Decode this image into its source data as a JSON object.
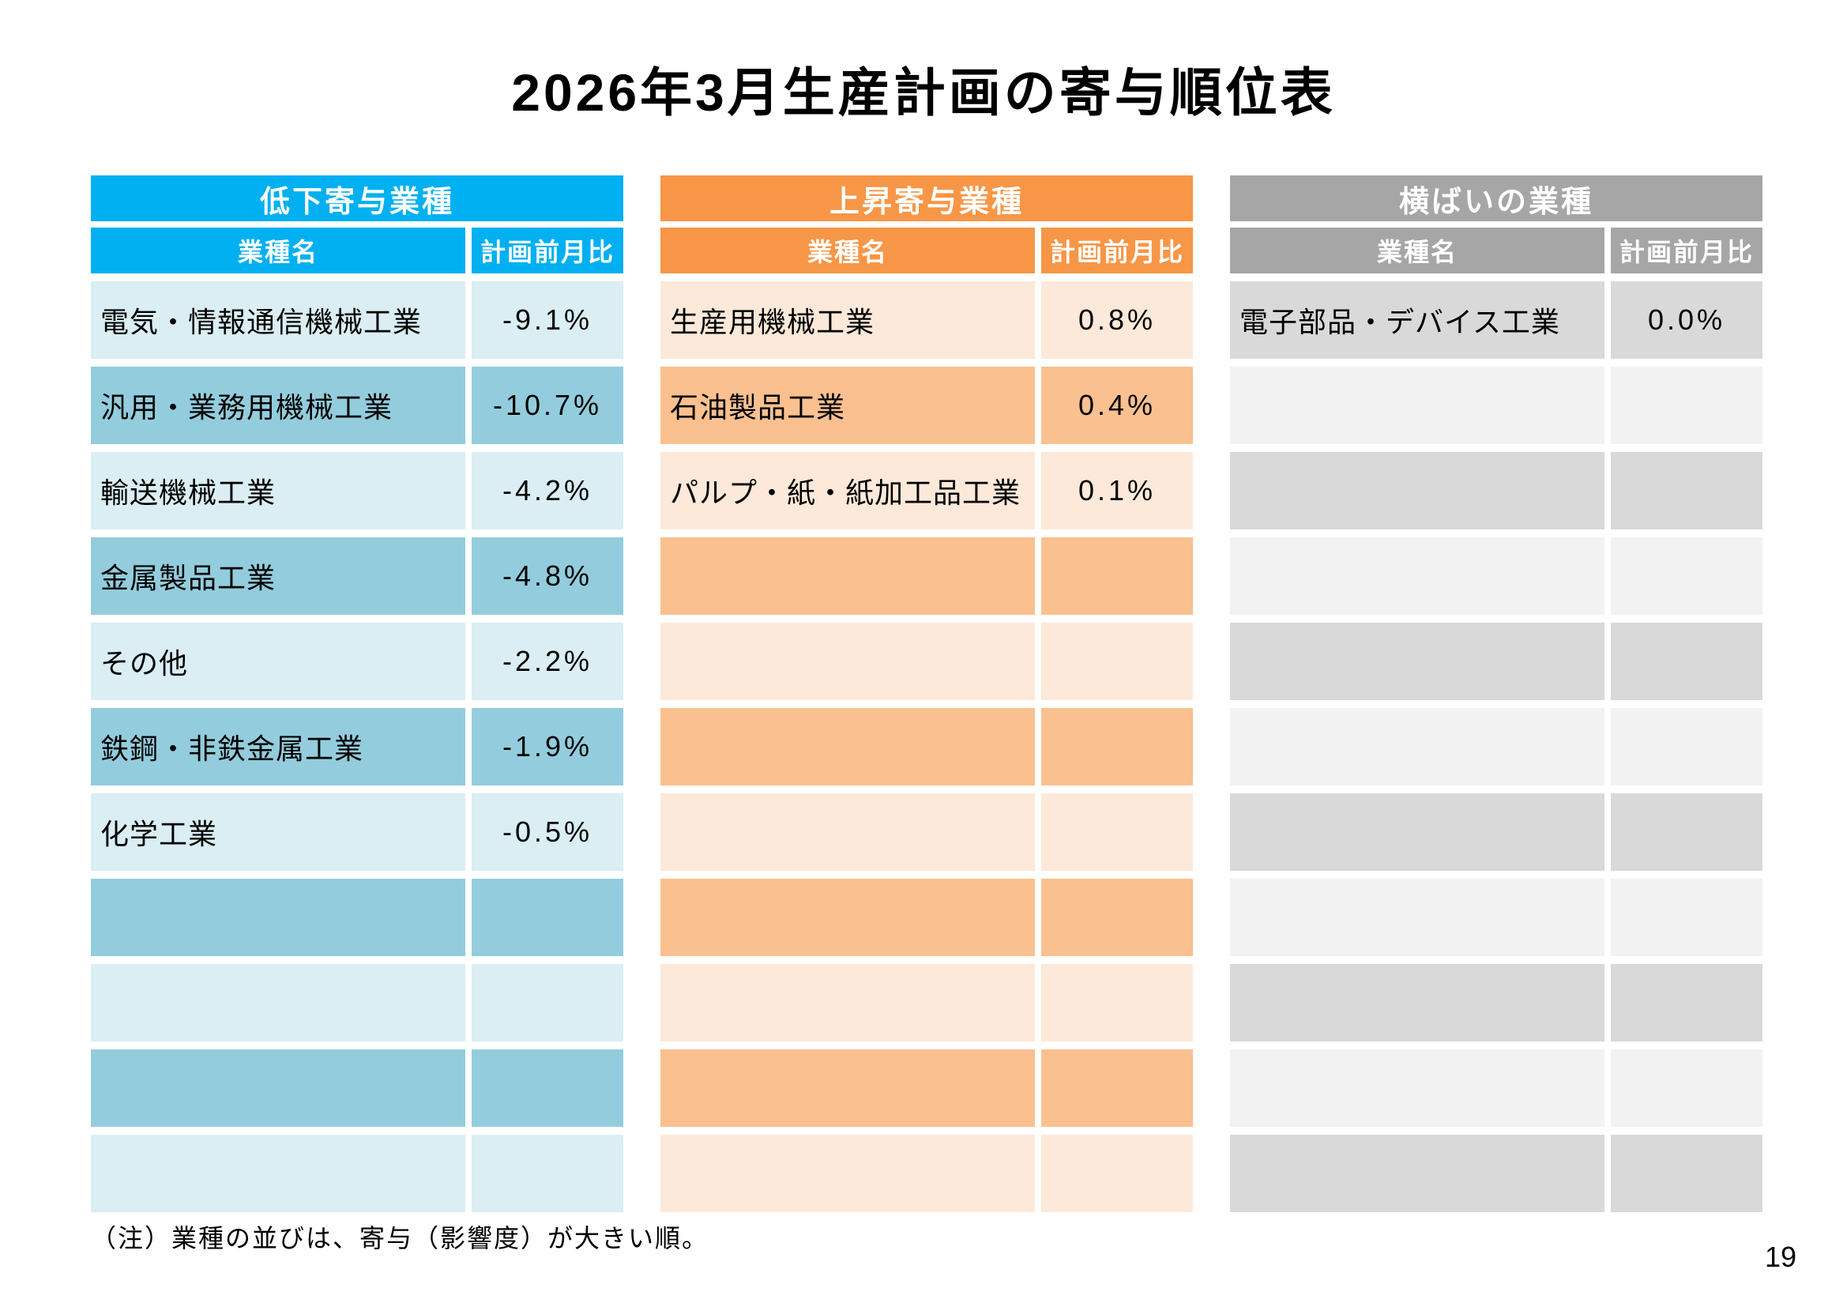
{
  "page": {
    "title": "2026年3月生産計画の寄与順位表",
    "note": "（注）業種の並びは、寄与（影響度）が大きい順。",
    "page_number": "19"
  },
  "column_headers": {
    "industry": "業種名",
    "ratio": "計画前月比"
  },
  "tables": [
    {
      "id": "decline-contribution",
      "title": "低下寄与業種",
      "colors": {
        "header": "#00B0F0",
        "row_light": "#DAEEF3",
        "row_medium": "#93CDDD"
      },
      "first_row_shade": "light",
      "rows": [
        {
          "name": "電気・情報通信機械工業",
          "value": "-9.1%"
        },
        {
          "name": "汎用・業務用機械工業",
          "value": "-10.7%"
        },
        {
          "name": "輸送機械工業",
          "value": "-4.2%"
        },
        {
          "name": "金属製品工業",
          "value": "-4.8%"
        },
        {
          "name": "その他",
          "value": "-2.2%"
        },
        {
          "name": "鉄鋼・非鉄金属工業",
          "value": "-1.9%"
        },
        {
          "name": "化学工業",
          "value": "-0.5%"
        },
        {
          "name": "",
          "value": ""
        },
        {
          "name": "",
          "value": ""
        },
        {
          "name": "",
          "value": ""
        },
        {
          "name": "",
          "value": ""
        }
      ]
    },
    {
      "id": "rise-contribution",
      "title": "上昇寄与業種",
      "colors": {
        "header": "#F79646",
        "row_light": "#FDE9D9",
        "row_medium": "#FAC090"
      },
      "first_row_shade": "light",
      "rows": [
        {
          "name": "生産用機械工業",
          "value": "0.8%"
        },
        {
          "name": "石油製品工業",
          "value": "0.4%"
        },
        {
          "name": "パルプ・紙・紙加工品工業",
          "value": "0.1%"
        },
        {
          "name": "",
          "value": ""
        },
        {
          "name": "",
          "value": ""
        },
        {
          "name": "",
          "value": ""
        },
        {
          "name": "",
          "value": ""
        },
        {
          "name": "",
          "value": ""
        },
        {
          "name": "",
          "value": ""
        },
        {
          "name": "",
          "value": ""
        },
        {
          "name": "",
          "value": ""
        }
      ]
    },
    {
      "id": "flat",
      "title": "横ばいの業種",
      "colors": {
        "header": "#A6A6A6",
        "row_light": "#F2F2F2",
        "row_medium": "#D9D9D9"
      },
      "first_row_shade": "medium",
      "rows": [
        {
          "name": "電子部品・デバイス工業",
          "value": "0.0%"
        },
        {
          "name": "",
          "value": ""
        },
        {
          "name": "",
          "value": ""
        },
        {
          "name": "",
          "value": ""
        },
        {
          "name": "",
          "value": ""
        },
        {
          "name": "",
          "value": ""
        },
        {
          "name": "",
          "value": ""
        },
        {
          "name": "",
          "value": ""
        },
        {
          "name": "",
          "value": ""
        },
        {
          "name": "",
          "value": ""
        },
        {
          "name": "",
          "value": ""
        }
      ]
    }
  ]
}
